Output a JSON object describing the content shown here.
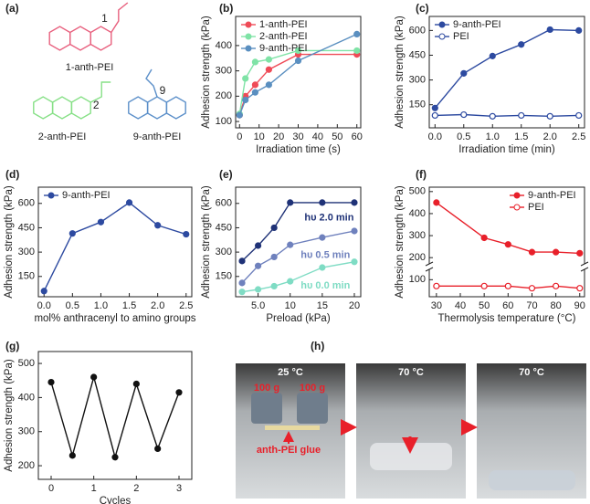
{
  "panels": [
    "(a)",
    "(b)",
    "(c)",
    "(d)",
    "(e)",
    "(f)",
    "(g)",
    "(h)"
  ],
  "diagram": {
    "molecules": [
      {
        "label": "1-anth-PEI",
        "position": "1",
        "color": "#e8607e"
      },
      {
        "label": "2-anth-PEI",
        "position": "2",
        "color": "#86e086"
      },
      {
        "label": "9-anth-PEI",
        "position": "9",
        "color": "#5b8fc9"
      }
    ]
  },
  "chart_data": [
    {
      "type": "line",
      "xlabel": "Irradiation time (s)",
      "ylabel": "Adhesion strength (kPa)",
      "x": [
        0,
        3,
        8,
        15,
        30,
        60
      ],
      "xlim": [
        -2,
        62
      ],
      "xticks": [
        0,
        10,
        20,
        30,
        40,
        50,
        60
      ],
      "ylim": [
        75,
        515
      ],
      "yticks": [
        100,
        200,
        300,
        400
      ],
      "legend": "upper left",
      "series": [
        {
          "name": "1-anth-PEI",
          "color": "#ef4b57",
          "values": [
            125,
            200,
            245,
            305,
            365,
            365
          ]
        },
        {
          "name": "2-anth-PEI",
          "color": "#7fe3a6",
          "values": [
            130,
            270,
            335,
            345,
            380,
            380
          ]
        },
        {
          "name": "9-anth-PEI",
          "color": "#5a8fc0",
          "values": [
            125,
            185,
            215,
            245,
            340,
            445
          ]
        }
      ]
    },
    {
      "type": "line",
      "xlabel": "Irradiation time (min)",
      "ylabel": "Adhesion strength (kPa)",
      "x": [
        0,
        0.5,
        1,
        1.5,
        2,
        2.5
      ],
      "xlim": [
        -0.1,
        2.6
      ],
      "xticks": [
        {
          "value": 0,
          "label": "0.0"
        },
        0.5,
        {
          "value": 1,
          "label": "1.0"
        },
        1.5,
        {
          "value": 2,
          "label": "2.0"
        },
        2.5
      ],
      "ylim": [
        10,
        685
      ],
      "yticks": [
        150,
        300,
        450,
        600
      ],
      "legend": "upper left",
      "series": [
        {
          "name": "9-anth-PEI",
          "color": "#2d4aa0",
          "values": [
            130,
            340,
            445,
            515,
            605,
            600
          ]
        },
        {
          "name": "PEI",
          "color": "#2d4aa0",
          "hollow": true,
          "values": [
            85,
            90,
            80,
            85,
            80,
            85
          ]
        }
      ]
    },
    {
      "type": "line",
      "xlabel": "mol% anthracenyl to amino groups",
      "ylabel": "Adhesion strength (kPa)",
      "x": [
        0,
        0.5,
        1,
        1.5,
        2,
        2.5
      ],
      "xlim": [
        -0.1,
        2.6
      ],
      "xticks": [
        {
          "value": 0,
          "label": "0.0"
        },
        0.5,
        {
          "value": 1,
          "label": "1.0"
        },
        1.5,
        {
          "value": 2,
          "label": "2.0"
        },
        2.5
      ],
      "ylim": [
        25,
        700
      ],
      "yticks": [
        150,
        300,
        450,
        600
      ],
      "legend": "upper left",
      "series": [
        {
          "name": "9-anth-PEI",
          "color": "#2d4aa0",
          "values": [
            60,
            415,
            485,
            605,
            465,
            410
          ]
        }
      ]
    },
    {
      "type": "line",
      "xlabel": "Preload (kPa)",
      "ylabel": "Adhesion strength (kPa)",
      "x": [
        2.5,
        5,
        7.5,
        10,
        15,
        20
      ],
      "xlim": [
        1.5,
        21
      ],
      "xticks": [
        {
          "value": 5,
          "label": "5.0"
        },
        10,
        15,
        20
      ],
      "ylim": [
        25,
        700
      ],
      "yticks": [
        150,
        300,
        450,
        600
      ],
      "legend": "inline",
      "series": [
        {
          "name": "hυ 2.0 min",
          "color": "#1f3277",
          "values": [
            245,
            340,
            450,
            605,
            605,
            605
          ]
        },
        {
          "name": "hυ 0.5 min",
          "color": "#6f81bd",
          "values": [
            110,
            215,
            270,
            345,
            390,
            430
          ]
        },
        {
          "name": "hυ 0.0 min",
          "color": "#7fdcc4",
          "values": [
            55,
            70,
            90,
            120,
            205,
            240
          ]
        }
      ]
    },
    {
      "type": "line",
      "xlabel": "Thermolysis  temperature (°C)",
      "ylabel": "Adhesion strength (kPa)",
      "x": [
        30,
        50,
        60,
        70,
        80,
        90
      ],
      "xlim": [
        27,
        92
      ],
      "xticks": [
        30,
        40,
        50,
        60,
        70,
        80,
        90
      ],
      "ylim": [
        60,
        520
      ],
      "ybreak": [
        120,
        180
      ],
      "yticks": [
        100,
        200,
        300,
        400,
        500
      ],
      "legend": "upper right",
      "series": [
        {
          "name": "9-anth-PEI",
          "color": "#e8202a",
          "values": [
            450,
            290,
            260,
            225,
            225,
            220
          ]
        },
        {
          "name": "PEI",
          "color": "#e8202a",
          "hollow": true,
          "values": [
            85,
            85,
            85,
            80,
            85,
            80
          ]
        }
      ]
    },
    {
      "type": "line",
      "xlabel": "Cycles",
      "ylabel": "Adhesion strength (kPa)",
      "x": [
        0,
        0.5,
        1,
        1.5,
        2,
        2.5,
        3
      ],
      "xlim": [
        -0.3,
        3.3
      ],
      "xticks": [
        0,
        1,
        2,
        3
      ],
      "ylim": [
        160,
        535
      ],
      "yticks": [
        200,
        300,
        400,
        500
      ],
      "series": [
        {
          "color": "#111111",
          "values": [
            445,
            230,
            460,
            225,
            440,
            250,
            415
          ]
        }
      ]
    }
  ],
  "photos": [
    {
      "temperature": "25 °C",
      "weights": [
        "100 g",
        "100 g"
      ],
      "note": "anth-PEI glue"
    },
    {
      "temperature": "70 °C"
    },
    {
      "temperature": "70 °C"
    }
  ]
}
